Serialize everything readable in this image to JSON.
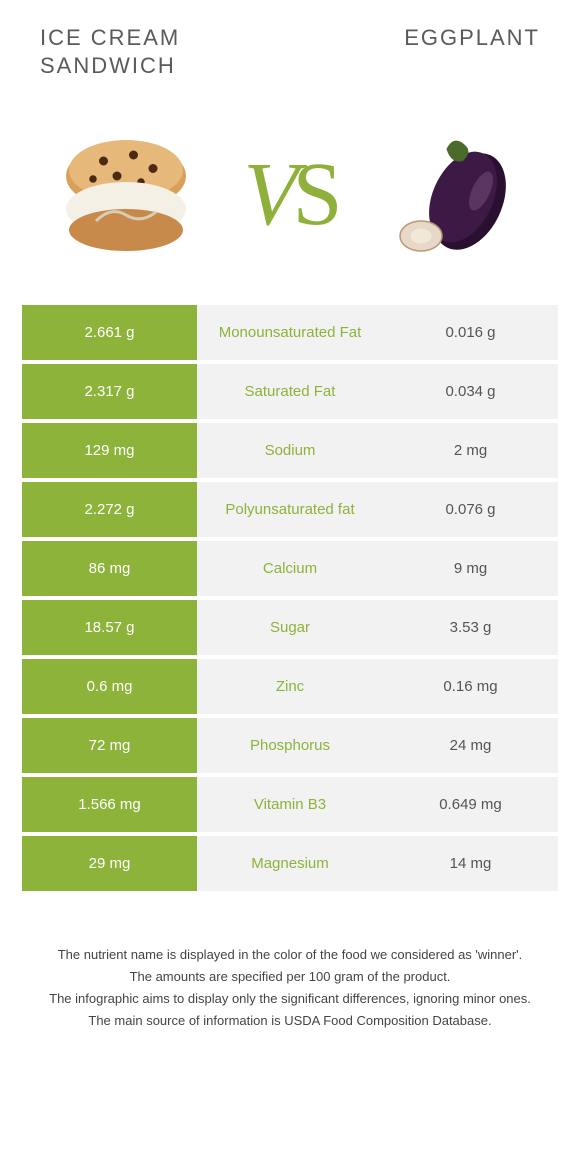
{
  "titles": {
    "left_l1": "ICE CREAM",
    "left_l2": "SANDWICH",
    "right": "EGGPLANT"
  },
  "vs": "VS",
  "colors": {
    "green": "#8db33a",
    "green_text": "#8db33a",
    "grey_bg": "#f2f2f2",
    "grey_text": "#555555",
    "title_text": "#5a5a5a",
    "foot_text": "#444444"
  },
  "rows": [
    {
      "left": "2.661 g",
      "nutrient": "Monounsaturated Fat",
      "right": "0.016 g"
    },
    {
      "left": "2.317 g",
      "nutrient": "Saturated Fat",
      "right": "0.034 g"
    },
    {
      "left": "129 mg",
      "nutrient": "Sodium",
      "right": "2 mg"
    },
    {
      "left": "2.272 g",
      "nutrient": "Polyunsaturated fat",
      "right": "0.076 g"
    },
    {
      "left": "86 mg",
      "nutrient": "Calcium",
      "right": "9 mg"
    },
    {
      "left": "18.57 g",
      "nutrient": "Sugar",
      "right": "3.53 g"
    },
    {
      "left": "0.6 mg",
      "nutrient": "Zinc",
      "right": "0.16 mg"
    },
    {
      "left": "72 mg",
      "nutrient": "Phosphorus",
      "right": "24 mg"
    },
    {
      "left": "1.566 mg",
      "nutrient": "Vitamin B3",
      "right": "0.649 mg"
    },
    {
      "left": "29 mg",
      "nutrient": "Magnesium",
      "right": "14 mg"
    }
  ],
  "footnotes": [
    "The nutrient name is displayed in the color of the food we considered as 'winner'.",
    "The amounts are specified per 100 gram of the product.",
    "The infographic aims to display only the significant differences, ignoring minor ones.",
    "The main source of information is USDA Food Composition Database."
  ]
}
